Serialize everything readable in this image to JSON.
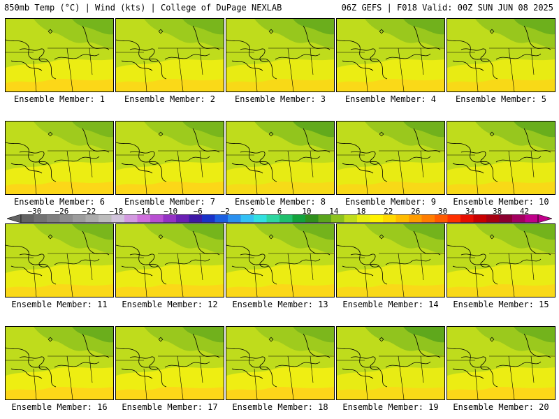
{
  "header": {
    "left": "850mb Temp (°C) | Wind (kts) | College of DuPage NEXLAB",
    "right": "06Z GEFS | F018 Valid: 00Z SUN JUN 08 2025"
  },
  "label_prefix": "Ensemble Member:",
  "members": [
    {
      "id": "1",
      "label": "Ensemble Member: 1",
      "warm": 0.7,
      "cool": 0.4
    },
    {
      "id": "2",
      "label": "Ensemble Member: 2",
      "warm": 0.6,
      "cool": 0.35
    },
    {
      "id": "3",
      "label": "Ensemble Member: 3",
      "warm": 0.5,
      "cool": 0.6
    },
    {
      "id": "4",
      "label": "Ensemble Member: 4",
      "warm": 0.6,
      "cool": 0.5
    },
    {
      "id": "5",
      "label": "Ensemble Member: 5",
      "warm": 0.5,
      "cool": 0.55
    },
    {
      "id": "6",
      "label": "Ensemble Member: 6",
      "warm": 0.7,
      "cool": 0.3
    },
    {
      "id": "7",
      "label": "Ensemble Member: 7",
      "warm": 0.7,
      "cool": 0.35
    },
    {
      "id": "8",
      "label": "Ensemble Member: 8",
      "warm": 0.4,
      "cool": 0.8
    },
    {
      "id": "9",
      "label": "Ensemble Member: 9",
      "warm": 0.5,
      "cool": 0.5
    },
    {
      "id": "10",
      "label": "Ensemble Member: 10",
      "warm": 0.5,
      "cool": 0.65
    },
    {
      "id": "11",
      "label": "Ensemble Member: 11",
      "warm": 0.6,
      "cool": 0.35
    },
    {
      "id": "12",
      "label": "Ensemble Member: 12",
      "warm": 0.65,
      "cool": 0.4
    },
    {
      "id": "13",
      "label": "Ensemble Member: 13",
      "warm": 0.65,
      "cool": 0.45
    },
    {
      "id": "14",
      "label": "Ensemble Member: 14",
      "warm": 0.55,
      "cool": 0.45
    },
    {
      "id": "15",
      "label": "Ensemble Member: 15",
      "warm": 0.55,
      "cool": 0.45
    },
    {
      "id": "16",
      "label": "Ensemble Member: 16",
      "warm": 0.75,
      "cool": 0.6
    },
    {
      "id": "17",
      "label": "Ensemble Member: 17",
      "warm": 0.75,
      "cool": 0.5
    },
    {
      "id": "18",
      "label": "Ensemble Member: 18",
      "warm": 0.8,
      "cool": 0.3
    },
    {
      "id": "19",
      "label": "Ensemble Member: 19",
      "warm": 0.45,
      "cool": 0.85
    },
    {
      "id": "20",
      "label": "Ensemble Member: 20",
      "warm": 0.7,
      "cool": 0.45
    }
  ],
  "colorbar": {
    "min": -32,
    "max": 44,
    "step": 2,
    "ticks": [
      -30,
      -26,
      -22,
      -18,
      -14,
      -10,
      -6,
      -2,
      2,
      6,
      10,
      14,
      18,
      22,
      26,
      30,
      34,
      38,
      42
    ],
    "tick_labels": [
      "−30",
      "−26",
      "−22",
      "−18",
      "−14",
      "−10",
      "−6",
      "−2",
      "2",
      "6",
      "10",
      "14",
      "18",
      "22",
      "26",
      "30",
      "34",
      "38",
      "42"
    ],
    "colors": [
      "#636363",
      "#727272",
      "#7f7f7f",
      "#8d8d8d",
      "#9c9c9c",
      "#acacac",
      "#bcbcbc",
      "#d2c4dc",
      "#d39ae0",
      "#cf6fdc",
      "#b84fd2",
      "#9432c4",
      "#6a1fb3",
      "#3e18a6",
      "#1a32c8",
      "#1c5fe0",
      "#2a90ef",
      "#33c1f5",
      "#32e0e0",
      "#2dd6a0",
      "#1fbf6c",
      "#12a23c",
      "#2f8f1c",
      "#5aa51c",
      "#8dc21e",
      "#bfdc1c",
      "#e8ee12",
      "#fff200",
      "#ffd900",
      "#ffbb00",
      "#ff9d00",
      "#ff7d00",
      "#ff5a00",
      "#ff2f00",
      "#e60d00",
      "#c80000",
      "#a60010",
      "#8a0030",
      "#a3005f",
      "#c0008a"
    ]
  }
}
